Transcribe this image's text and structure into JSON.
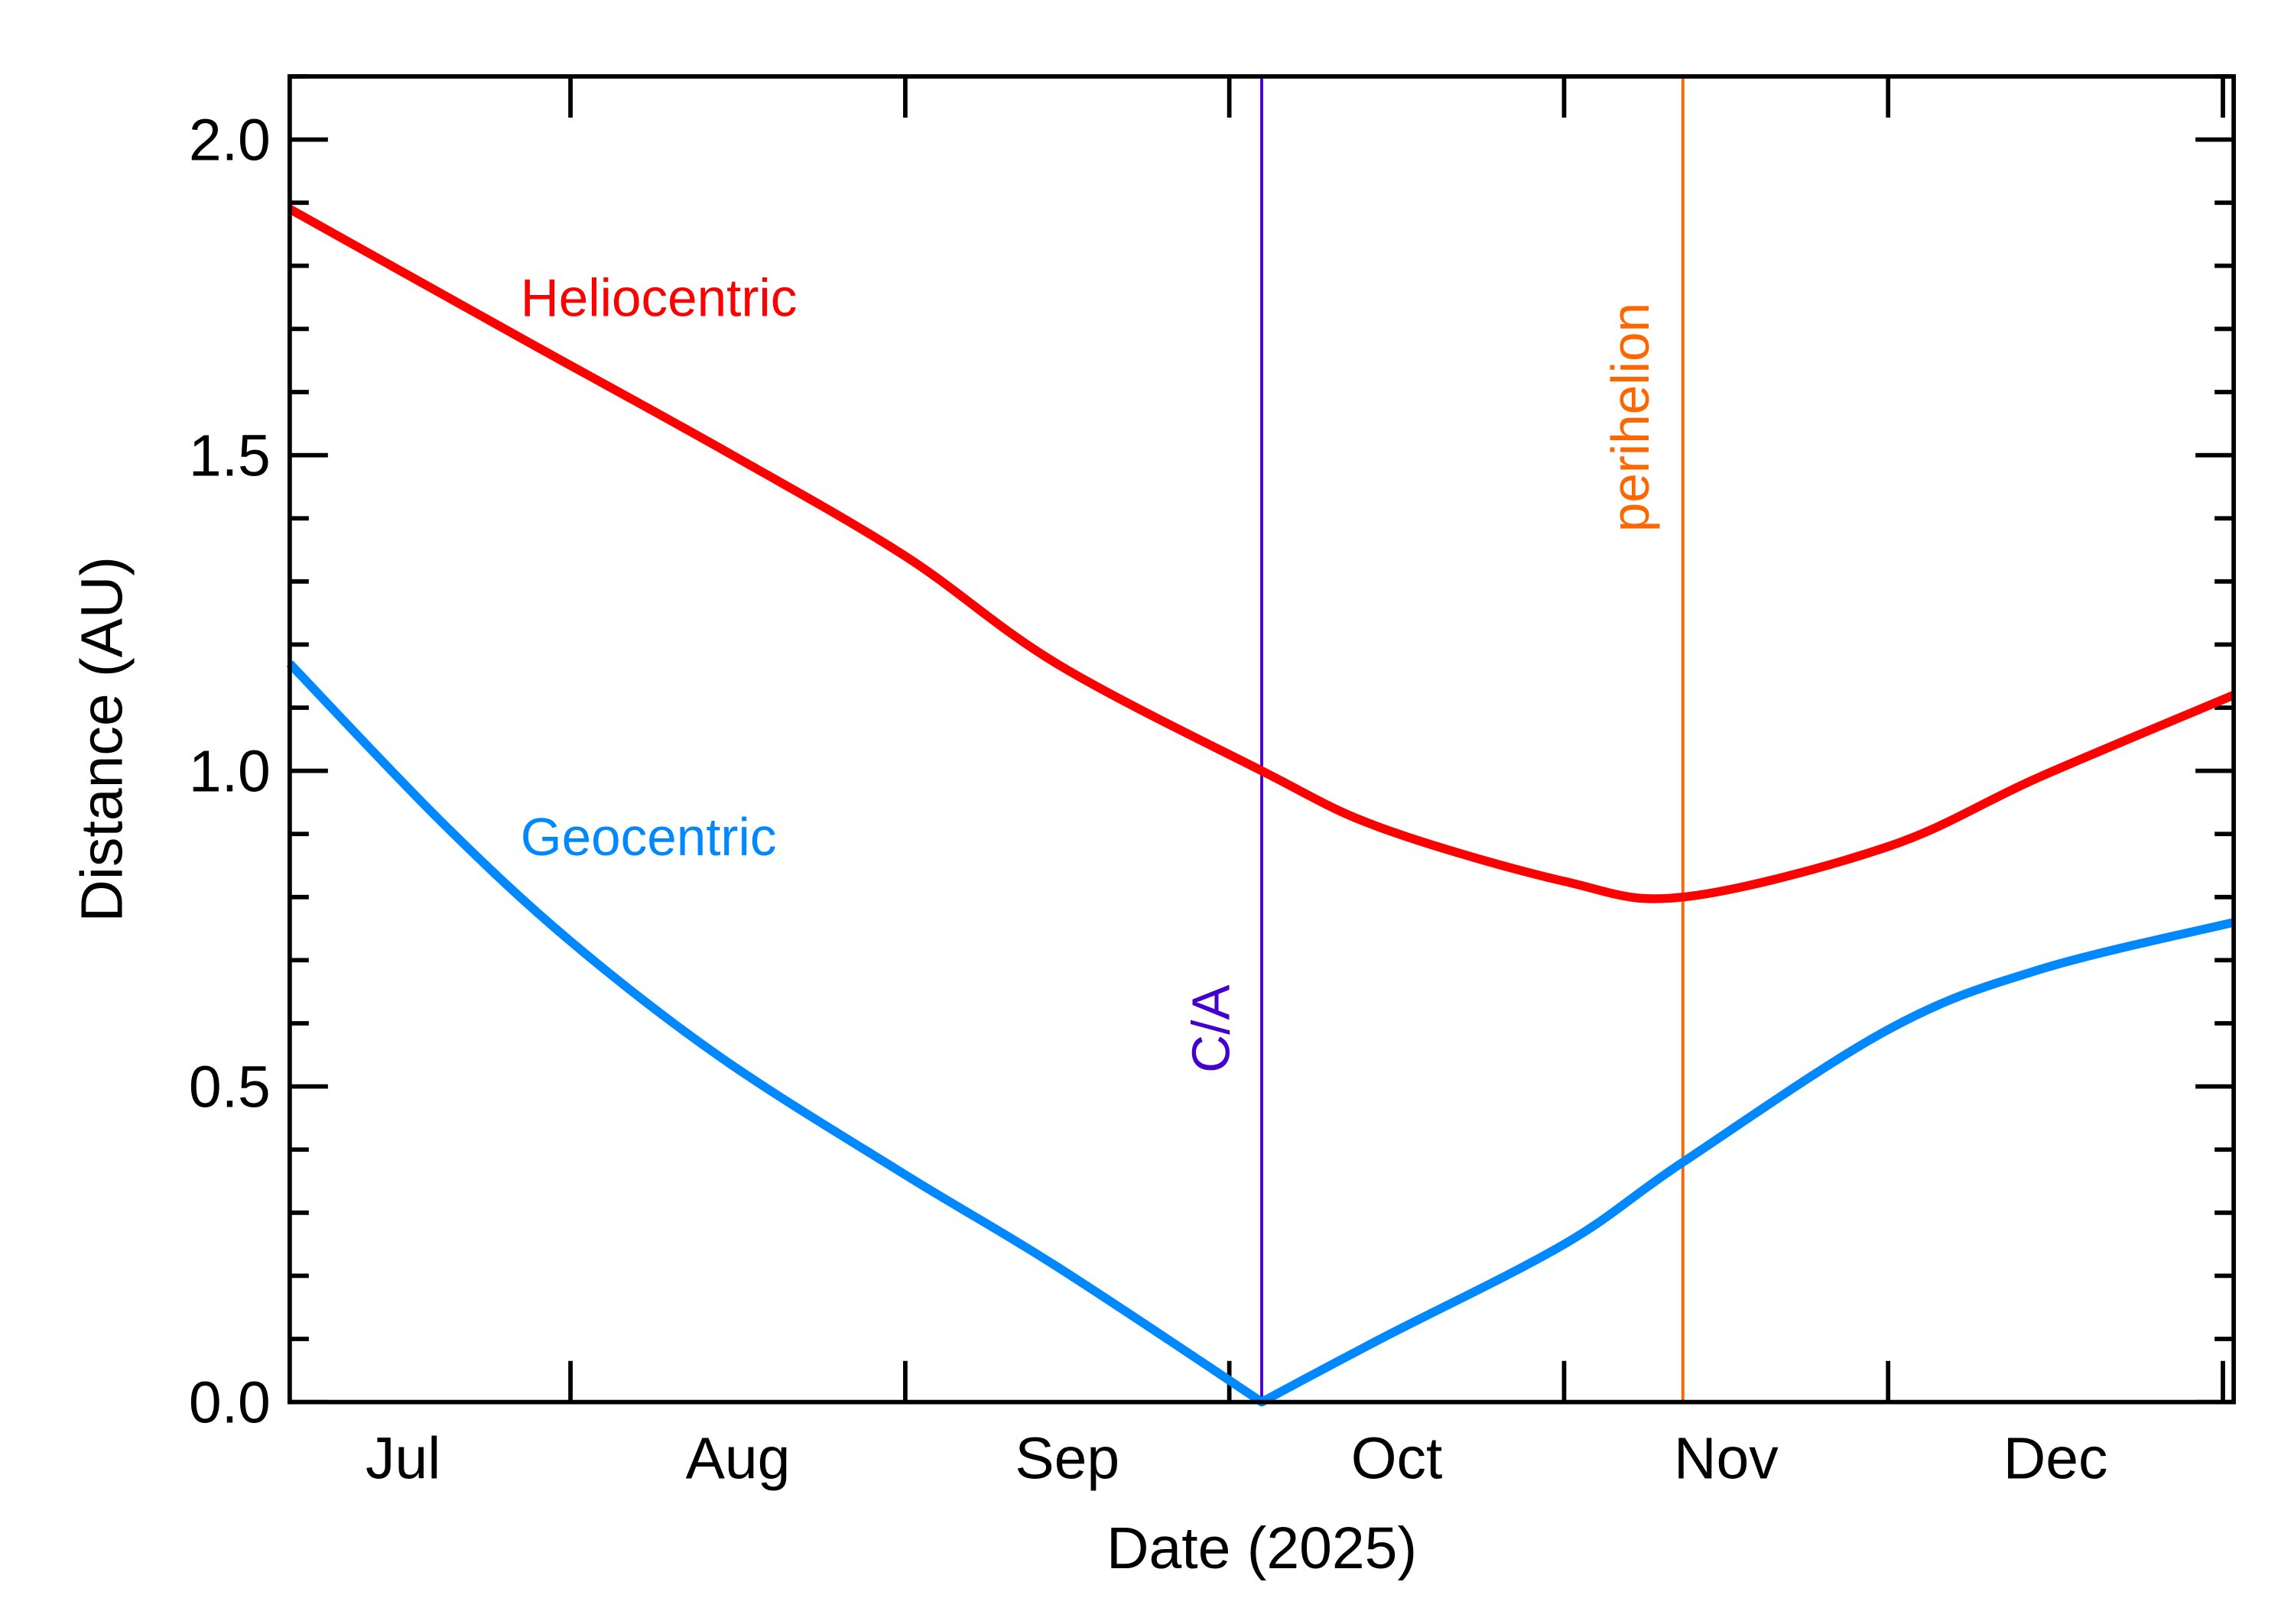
{
  "chart_data": {
    "type": "line",
    "xlabel": "Date (2025)",
    "ylabel": "Distance (AU)",
    "xlim": [
      "2025-07-06",
      "2026-01-02"
    ],
    "ylim": [
      0.0,
      2.1
    ],
    "x_ticks": [
      "2025-07-01",
      "2025-08-01",
      "2025-09-01",
      "2025-10-01",
      "2025-11-01",
      "2025-12-01",
      "2026-01-01"
    ],
    "x_tick_labels": [
      {
        "label": "Jul",
        "month_start": "2025-07-01"
      },
      {
        "label": "Aug",
        "month_start": "2025-08-01"
      },
      {
        "label": "Sep",
        "month_start": "2025-09-01"
      },
      {
        "label": "Oct",
        "month_start": "2025-10-01"
      },
      {
        "label": "Nov",
        "month_start": "2025-11-01"
      },
      {
        "label": "Dec",
        "month_start": "2025-12-01"
      }
    ],
    "y_ticks": [
      0.0,
      0.5,
      1.0,
      1.5,
      2.0
    ],
    "y_tick_labels": [
      "0.0",
      "0.5",
      "1.0",
      "1.5",
      "2.0"
    ],
    "y_minor_step": 0.1,
    "grid": false,
    "series": [
      {
        "name": "Heliocentric",
        "color": "#FF0000",
        "x": [
          "2025-07-06",
          "2025-07-28",
          "2025-08-16",
          "2025-09-01",
          "2025-09-15",
          "2025-10-04",
          "2025-10-15",
          "2025-11-01",
          "2025-11-12",
          "2025-12-01",
          "2025-12-15",
          "2026-01-02"
        ],
        "y": [
          1.89,
          1.68,
          1.5,
          1.34,
          1.17,
          1.0,
          0.91,
          0.825,
          0.8,
          0.88,
          0.99,
          1.12
        ]
      },
      {
        "name": "Geocentric",
        "color": "#0088FF",
        "x": [
          "2025-07-06",
          "2025-07-20",
          "2025-08-01",
          "2025-08-15",
          "2025-09-01",
          "2025-09-15",
          "2025-10-04",
          "2025-10-15",
          "2025-11-01",
          "2025-11-12",
          "2025-12-01",
          "2025-12-15",
          "2026-01-02"
        ],
        "y": [
          1.17,
          0.92,
          0.73,
          0.545,
          0.36,
          0.215,
          0.0,
          0.1,
          0.25,
          0.38,
          0.59,
          0.685,
          0.76
        ]
      }
    ],
    "annotations": [
      {
        "label": "C/A",
        "date": "2025-10-04",
        "color": "#4400CC"
      },
      {
        "label": "perihelion",
        "date": "2025-11-12",
        "color": "#FF6600"
      }
    ]
  }
}
